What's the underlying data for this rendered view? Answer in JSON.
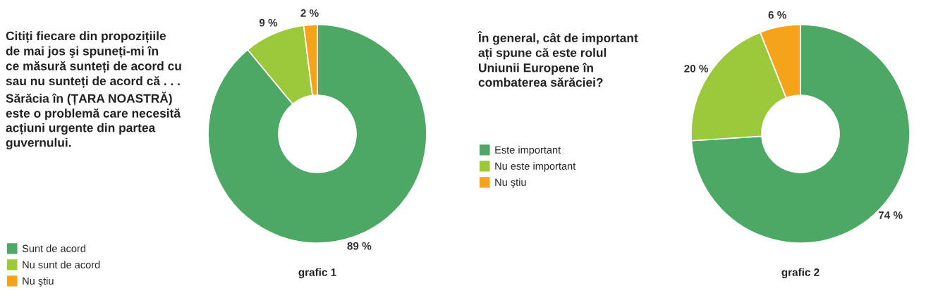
{
  "chart_data": [
    {
      "type": "donut",
      "title": "Citiți fiecare din propozițiile\nde mai jos şi spuneți-mi în\nce măsură sunteți de acord cu\nsau nu sunteți de acord că . . .\nSărăcia în (ȚARA NOASTRĂ)\neste o problemă care necesită\nacțiuni urgente din partea\nguvernului.",
      "xlabel": "grafic 1",
      "categories": [
        "Sunt de acord",
        "Nu sunt de acord",
        "Nu ştiu"
      ],
      "values": [
        89,
        9,
        2
      ],
      "colors": [
        "#4ea865",
        "#9cc93b",
        "#f5a31b"
      ],
      "value_labels": [
        "89 %",
        "9 %",
        "2 %"
      ],
      "legend": "bottom left"
    },
    {
      "type": "donut",
      "title": "În general, cât de important\nați spune că este rolul\nUniunii Europene în\ncombaterea sărăciei?",
      "xlabel": "grafic 2",
      "categories": [
        "Este important",
        "Nu este important",
        "Nu ştiu"
      ],
      "values": [
        74,
        20,
        6
      ],
      "colors": [
        "#4ea865",
        "#9cc93b",
        "#f5a31b"
      ],
      "value_labels": [
        "74 %",
        "20 %",
        "6 %"
      ],
      "legend": "left"
    }
  ]
}
